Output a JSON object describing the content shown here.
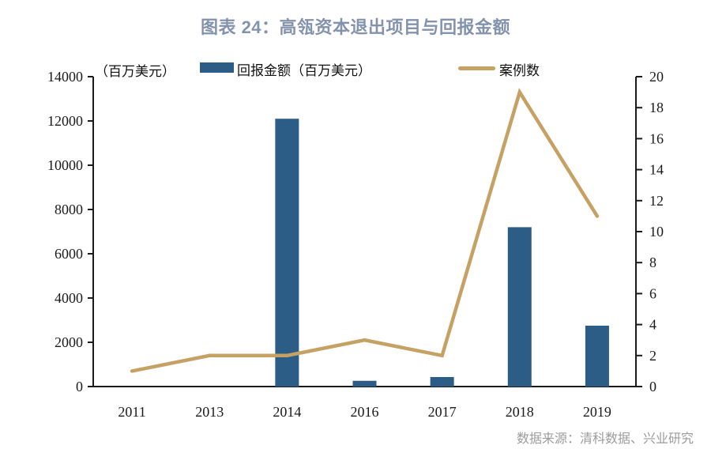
{
  "title": "图表 24：高瓴资本退出项目与回报金额",
  "axis_unit_label": "（百万美元）",
  "legend": {
    "bar_label": "回报金额（百万美元）",
    "line_label": "案例数"
  },
  "source": "数据来源：清科数据、兴业研究",
  "colors": {
    "bar": "#2c5d87",
    "line": "#c5a264",
    "axis": "#1a1a1a",
    "title": "#8493ac",
    "source": "#9c9c9c"
  },
  "chart_data": {
    "type": "bar",
    "subtype": "bar+line combo, dual axis",
    "categories": [
      "2011",
      "2013",
      "2014",
      "2016",
      "2017",
      "2018",
      "2019"
    ],
    "series": [
      {
        "name": "回报金额（百万美元）",
        "type": "bar",
        "axis": "left",
        "values": [
          0,
          0,
          12100,
          260,
          430,
          7200,
          2750
        ]
      },
      {
        "name": "案例数",
        "type": "line",
        "axis": "right",
        "values": [
          1,
          2,
          2,
          3,
          2,
          19,
          11
        ]
      }
    ],
    "left_axis": {
      "min": 0,
      "max": 14000,
      "step": 2000
    },
    "right_axis": {
      "min": 0,
      "max": 20,
      "step": 2
    },
    "grid": false,
    "legend_position": "top",
    "title": "图表 24：高瓴资本退出项目与回报金额"
  }
}
